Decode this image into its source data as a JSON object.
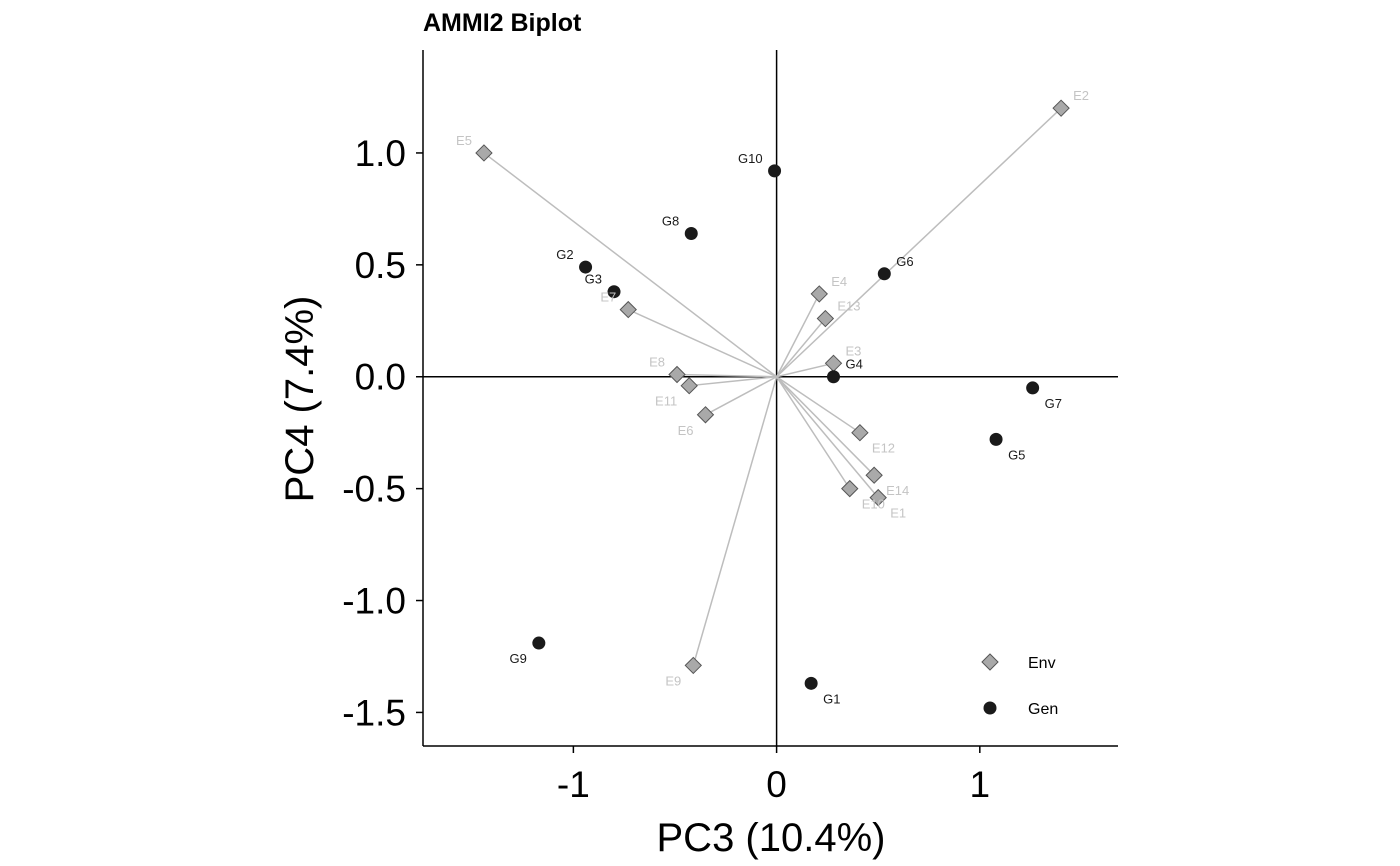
{
  "chart_data": {
    "type": "scatter",
    "title": "AMMI2 Biplot",
    "xlabel": "PC3 (10.4%)",
    "ylabel": "PC4 (7.4%)",
    "xlim": [
      -1.74,
      1.68
    ],
    "ylim": [
      -1.65,
      1.46
    ],
    "xticks": [
      -1,
      0,
      1
    ],
    "xtick_labels": [
      "-1",
      "0",
      "1"
    ],
    "yticks": [
      1.0,
      0.5,
      0.0,
      -0.5,
      -1.0,
      -1.5
    ],
    "ytick_labels": [
      "1.0",
      "0.5",
      "0.0",
      "-0.5",
      "-1.0",
      "-1.5"
    ],
    "grid": false,
    "legend_position": "bottom-right",
    "series": [
      {
        "name": "Env",
        "marker": "diamond",
        "color": "#a9a9a9",
        "label_color": "#c4c4c4",
        "vectors": true,
        "points": [
          {
            "label": "E1",
            "x": 0.5,
            "y": -0.54
          },
          {
            "label": "E2",
            "x": 1.4,
            "y": 1.2
          },
          {
            "label": "E3",
            "x": 0.28,
            "y": 0.06
          },
          {
            "label": "E4",
            "x": 0.21,
            "y": 0.37
          },
          {
            "label": "E5",
            "x": -1.44,
            "y": 1.0
          },
          {
            "label": "E6",
            "x": -0.35,
            "y": -0.17
          },
          {
            "label": "E7",
            "x": -0.73,
            "y": 0.3
          },
          {
            "label": "E8",
            "x": -0.49,
            "y": 0.01
          },
          {
            "label": "E9",
            "x": -0.41,
            "y": -1.29
          },
          {
            "label": "E10",
            "x": 0.36,
            "y": -0.5
          },
          {
            "label": "E11",
            "x": -0.43,
            "y": -0.04
          },
          {
            "label": "E12",
            "x": 0.41,
            "y": -0.25
          },
          {
            "label": "E13",
            "x": 0.24,
            "y": 0.26
          },
          {
            "label": "E14",
            "x": 0.48,
            "y": -0.44
          }
        ]
      },
      {
        "name": "Gen",
        "marker": "circle",
        "color": "#1a1a1a",
        "label_color": "#1a1a1a",
        "vectors": false,
        "points": [
          {
            "label": "G1",
            "x": 0.17,
            "y": -1.37
          },
          {
            "label": "G2",
            "x": -0.94,
            "y": 0.49
          },
          {
            "label": "G3",
            "x": -0.8,
            "y": 0.38
          },
          {
            "label": "G4",
            "x": 0.28,
            "y": 0.0
          },
          {
            "label": "G5",
            "x": 1.08,
            "y": -0.28
          },
          {
            "label": "G6",
            "x": 0.53,
            "y": 0.46
          },
          {
            "label": "G7",
            "x": 1.26,
            "y": -0.05
          },
          {
            "label": "G8",
            "x": -0.42,
            "y": 0.64
          },
          {
            "label": "G9",
            "x": -1.17,
            "y": -1.19
          },
          {
            "label": "G10",
            "x": -0.01,
            "y": 0.92
          }
        ]
      }
    ]
  }
}
